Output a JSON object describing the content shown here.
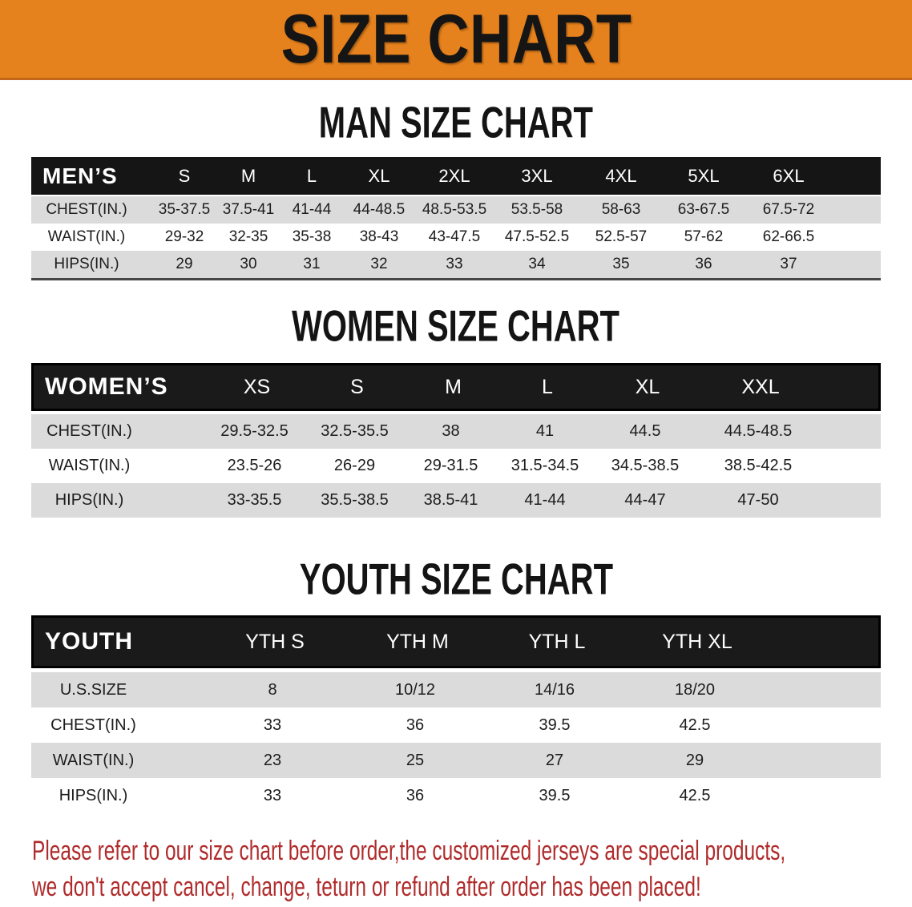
{
  "banner": {
    "title": "SIZE CHART"
  },
  "colors": {
    "banner_bg": "#E6821D",
    "banner_border": "#C2661A",
    "header_band": "#1A1A1A",
    "row_stripe": "#DBDBDB",
    "disclaimer_text": "#B02B2B"
  },
  "sections": {
    "men": {
      "heading": "MAN SIZE CHART",
      "table": {
        "corner": "MEN’S",
        "sizes": [
          "S",
          "M",
          "L",
          "XL",
          "2XL",
          "3XL",
          "4XL",
          "5XL",
          "6XL"
        ],
        "rows": [
          {
            "label": "CHEST(IN.)",
            "values": [
              "35-37.5",
              "37.5-41",
              "41-44",
              "44-48.5",
              "48.5-53.5",
              "53.5-58",
              "58-63",
              "63-67.5",
              "67.5-72"
            ]
          },
          {
            "label": "WAIST(IN.)",
            "values": [
              "29-32",
              "32-35",
              "35-38",
              "38-43",
              "43-47.5",
              "47.5-52.5",
              "52.5-57",
              "57-62",
              "62-66.5"
            ]
          },
          {
            "label": "HIPS(IN.)",
            "values": [
              "29",
              "30",
              "31",
              "32",
              "33",
              "34",
              "35",
              "36",
              "37"
            ]
          }
        ]
      }
    },
    "women": {
      "heading": "WOMEN SIZE CHART",
      "table": {
        "corner": "WOMEN’S",
        "sizes": [
          "XS",
          "S",
          "M",
          "L",
          "XL",
          "XXL"
        ],
        "rows": [
          {
            "label": "CHEST(IN.)",
            "values": [
              "29.5-32.5",
              "32.5-35.5",
              "38",
              "41",
              "44.5",
              "44.5-48.5"
            ]
          },
          {
            "label": "WAIST(IN.)",
            "values": [
              "23.5-26",
              "26-29",
              "29-31.5",
              "31.5-34.5",
              "34.5-38.5",
              "38.5-42.5"
            ]
          },
          {
            "label": "HIPS(IN.)",
            "values": [
              "33-35.5",
              "35.5-38.5",
              "38.5-41",
              "41-44",
              "44-47",
              "47-50"
            ]
          }
        ]
      }
    },
    "youth": {
      "heading": "YOUTH SIZE CHART",
      "table": {
        "corner": "YOUTH",
        "sizes": [
          "YTH S",
          "YTH M",
          "YTH L",
          "YTH XL"
        ],
        "rows": [
          {
            "label": "U.S.SIZE",
            "values": [
              "8",
              "10/12",
              "14/16",
              "18/20"
            ]
          },
          {
            "label": "CHEST(IN.)",
            "values": [
              "33",
              "36",
              "39.5",
              "42.5"
            ]
          },
          {
            "label": "WAIST(IN.)",
            "values": [
              "23",
              "25",
              "27",
              "29"
            ]
          },
          {
            "label": "HIPS(IN.)",
            "values": [
              "33",
              "36",
              "39.5",
              "42.5"
            ]
          }
        ]
      }
    }
  },
  "disclaimer": {
    "line1": "Please refer to our size chart before order,the customized jerseys are special products,",
    "line2": "we don't accept cancel, change, teturn or refund after order has been placed!"
  }
}
